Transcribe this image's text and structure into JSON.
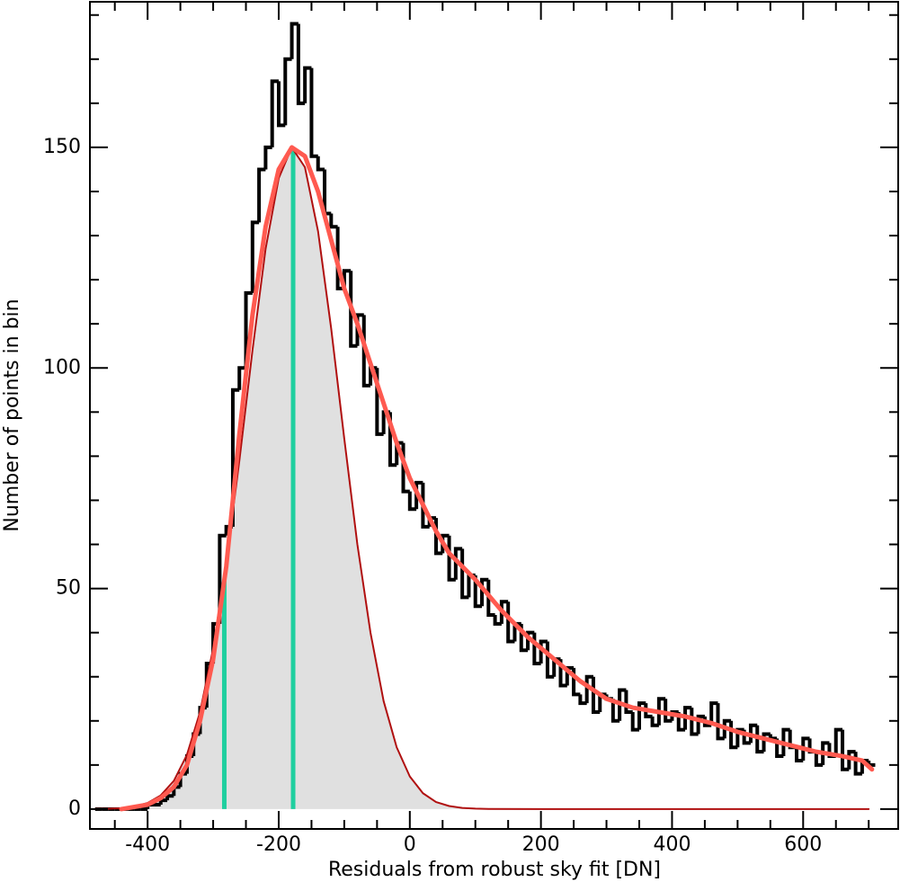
{
  "chart_data": {
    "type": "histogram",
    "xlabel": "Residuals from robust sky fit [DN]",
    "ylabel": "Number of points in bin",
    "xlim": [
      -488,
      745
    ],
    "ylim": [
      -4.5,
      183
    ],
    "xticks": [
      -400,
      -200,
      0,
      200,
      400,
      600
    ],
    "yticks": [
      0,
      50,
      100,
      150
    ],
    "xminorticks": [
      -450,
      -350,
      -300,
      -250,
      -150,
      -100,
      -50,
      50,
      100,
      150,
      250,
      300,
      350,
      450,
      500,
      550,
      650,
      700
    ],
    "yminorticks": [
      10,
      20,
      30,
      40,
      60,
      70,
      80,
      90,
      110,
      120,
      130,
      140,
      160,
      170,
      180
    ],
    "color": "#000000",
    "bins": [
      -480,
      -470,
      -460,
      -450,
      -440,
      -430,
      -420,
      -410,
      -400,
      -390,
      -380,
      -370,
      -360,
      -350,
      -340,
      -330,
      -320,
      -310,
      -300,
      -290,
      -280,
      -270,
      -260,
      -250,
      -240,
      -230,
      -220,
      -210,
      -200,
      -190,
      -180,
      -170,
      -160,
      -150,
      -140,
      -130,
      -120,
      -110,
      -100,
      -90,
      -80,
      -70,
      -60,
      -50,
      -40,
      -30,
      -20,
      -10,
      0,
      10,
      20,
      30,
      40,
      50,
      60,
      70,
      80,
      90,
      100,
      110,
      120,
      130,
      140,
      150,
      160,
      170,
      180,
      190,
      200,
      210,
      220,
      230,
      240,
      250,
      260,
      270,
      280,
      290,
      300,
      310,
      320,
      330,
      340,
      350,
      360,
      370,
      380,
      390,
      400,
      410,
      420,
      430,
      440,
      450,
      460,
      470,
      480,
      490,
      500,
      510,
      520,
      530,
      540,
      550,
      560,
      570,
      580,
      590,
      600,
      610,
      620,
      630,
      640,
      650,
      660,
      670,
      680,
      690,
      700,
      710
    ],
    "values": [
      0,
      0,
      0,
      0,
      0,
      0,
      0,
      0,
      1,
      1,
      2,
      3,
      5,
      8,
      12,
      17,
      23,
      33,
      42,
      62,
      64,
      95,
      100,
      117,
      133,
      145,
      150,
      165,
      155,
      170,
      178,
      160,
      168,
      148,
      145,
      135,
      132,
      118,
      122,
      105,
      112,
      96,
      100,
      85,
      90,
      78,
      83,
      72,
      68,
      74,
      64,
      66,
      58,
      62,
      52,
      59,
      48,
      53,
      46,
      52,
      44,
      42,
      47,
      38,
      42,
      36,
      40,
      33,
      38,
      30,
      34,
      28,
      32,
      26,
      24,
      30,
      22,
      26,
      25,
      20,
      27,
      22,
      18,
      24,
      21,
      19,
      25,
      20,
      22,
      18,
      23,
      17,
      21,
      19,
      24,
      16,
      20,
      14,
      18,
      15,
      19,
      13,
      17,
      16,
      12,
      18,
      14,
      11,
      16,
      13,
      10,
      15,
      12,
      18,
      9,
      13,
      8,
      11,
      10
    ],
    "gaussian": {
      "color": "#b01010",
      "fill": "#e0e0e0",
      "x": [
        -480,
        -460,
        -440,
        -420,
        -400,
        -380,
        -360,
        -340,
        -320,
        -300,
        -280,
        -260,
        -240,
        -220,
        -200,
        -180,
        -160,
        -140,
        -120,
        -100,
        -80,
        -60,
        -40,
        -20,
        0,
        20,
        40,
        60,
        80,
        100,
        120,
        200,
        400,
        700
      ],
      "values": [
        0.03,
        0.08,
        0.22,
        0.57,
        1.38,
        3.1,
        6.4,
        12.3,
        22,
        36.4,
        55.8,
        79,
        104,
        127,
        143,
        150,
        145.5,
        131,
        109,
        84,
        60,
        40,
        24.5,
        14,
        7.4,
        3.6,
        1.6,
        0.7,
        0.27,
        0.1,
        0.03,
        0,
        0,
        0
      ]
    },
    "fit": {
      "color": "#ff5a50",
      "x": [
        -440,
        -400,
        -380,
        -360,
        -340,
        -320,
        -300,
        -280,
        -260,
        -240,
        -220,
        -200,
        -180,
        -160,
        -140,
        -120,
        -100,
        -80,
        -60,
        -40,
        -20,
        0,
        20,
        40,
        60,
        80,
        100,
        140,
        180,
        220,
        260,
        300,
        340,
        380,
        420,
        460,
        500,
        540,
        580,
        620,
        660,
        690,
        705
      ],
      "values": [
        0,
        1,
        2.5,
        5,
        10,
        20,
        34,
        55,
        85,
        112,
        132,
        145,
        150,
        148,
        140,
        129,
        118,
        110,
        101,
        92,
        83,
        75,
        69,
        63,
        58,
        55,
        52,
        45,
        39,
        34,
        29,
        25,
        23,
        22,
        21,
        19.5,
        17.5,
        16,
        14.5,
        13,
        12,
        11,
        9
      ]
    },
    "markers": {
      "color": "#1fcf9f",
      "x": [
        -283,
        -178
      ],
      "values": [
        52,
        150
      ]
    }
  }
}
